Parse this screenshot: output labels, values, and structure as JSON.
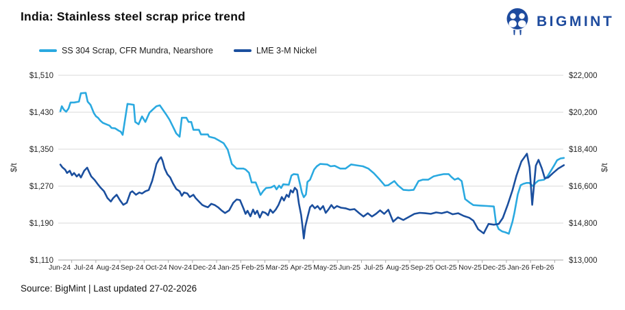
{
  "header": {
    "title": "India: Stainless steel scrap price trend",
    "logo_text": "BIGMINT",
    "logo_color": "#1E4B9E"
  },
  "footer": {
    "source": "Source: BigMint | Last updated 27-02-2026"
  },
  "chart_data": {
    "type": "line",
    "title": "India: Stainless steel scrap price trend",
    "grid": "horizontal",
    "legend_position": "top-left",
    "x_axis": {
      "labels": [
        "Jun-24",
        "Jul-24",
        "Aug-24",
        "Sep-24",
        "Oct-24",
        "Nov-24",
        "Dec-24",
        "Jan-25",
        "Feb-25",
        "Mar-25",
        "Apr-25",
        "May-25",
        "Jun-25",
        "Jul-25",
        "Aug-25",
        "Sep-25",
        "Oct-25",
        "Nov-25",
        "Dec-25",
        "Jan-26",
        "Feb-26"
      ]
    },
    "left_axis": {
      "label": "$/t",
      "min": 1110,
      "max": 1510,
      "ticks": [
        "$1,510",
        "$1,430",
        "$1,350",
        "$1,270",
        "$1,190",
        "$1,110"
      ],
      "tick_values": [
        1510,
        1430,
        1350,
        1270,
        1190,
        1110
      ]
    },
    "right_axis": {
      "label": "$/t",
      "min": 13000,
      "max": 22000,
      "ticks": [
        "$22,000",
        "$20,200",
        "$18,400",
        "$16,600",
        "$14,800",
        "$13,000"
      ],
      "tick_values": [
        22000,
        20200,
        18400,
        16600,
        14800,
        13000
      ]
    },
    "series": [
      {
        "name": "SS 304 Scrap, CFR Mundra, Nearshore",
        "axis": "left",
        "color": "#2AA9E0",
        "points": [
          [
            0.03,
            1432
          ],
          [
            0.09,
            1443
          ],
          [
            0.17,
            1436
          ],
          [
            0.27,
            1431
          ],
          [
            0.37,
            1438
          ],
          [
            0.45,
            1451
          ],
          [
            0.6,
            1451
          ],
          [
            0.8,
            1453
          ],
          [
            0.88,
            1471
          ],
          [
            1.08,
            1472
          ],
          [
            1.16,
            1453
          ],
          [
            1.28,
            1446
          ],
          [
            1.42,
            1428
          ],
          [
            1.51,
            1421
          ],
          [
            1.59,
            1418
          ],
          [
            1.7,
            1411
          ],
          [
            1.79,
            1407
          ],
          [
            1.93,
            1404
          ],
          [
            2.07,
            1401
          ],
          [
            2.15,
            1396
          ],
          [
            2.3,
            1395
          ],
          [
            2.45,
            1390
          ],
          [
            2.53,
            1388
          ],
          [
            2.61,
            1381
          ],
          [
            2.69,
            1408
          ],
          [
            2.81,
            1448
          ],
          [
            2.95,
            1447
          ],
          [
            3.07,
            1446
          ],
          [
            3.13,
            1409
          ],
          [
            3.27,
            1404
          ],
          [
            3.41,
            1421
          ],
          [
            3.55,
            1409
          ],
          [
            3.72,
            1429
          ],
          [
            3.86,
            1436
          ],
          [
            4.01,
            1443
          ],
          [
            4.15,
            1445
          ],
          [
            4.4,
            1426
          ],
          [
            4.55,
            1414
          ],
          [
            4.69,
            1399
          ],
          [
            4.83,
            1384
          ],
          [
            4.97,
            1377
          ],
          [
            5.06,
            1418
          ],
          [
            5.25,
            1418
          ],
          [
            5.34,
            1409
          ],
          [
            5.45,
            1409
          ],
          [
            5.54,
            1392
          ],
          [
            5.77,
            1392
          ],
          [
            5.85,
            1382
          ],
          [
            6.14,
            1382
          ],
          [
            6.19,
            1377
          ],
          [
            6.42,
            1374
          ],
          [
            6.62,
            1368
          ],
          [
            6.79,
            1363
          ],
          [
            6.96,
            1349
          ],
          [
            7.13,
            1318
          ],
          [
            7.33,
            1308
          ],
          [
            7.61,
            1308
          ],
          [
            7.7,
            1306
          ],
          [
            7.84,
            1299
          ],
          [
            7.95,
            1278
          ],
          [
            8.12,
            1278
          ],
          [
            8.21,
            1266
          ],
          [
            8.32,
            1251
          ],
          [
            8.44,
            1260
          ],
          [
            8.55,
            1266
          ],
          [
            8.75,
            1267
          ],
          [
            8.89,
            1271
          ],
          [
            8.98,
            1263
          ],
          [
            9.09,
            1271
          ],
          [
            9.17,
            1266
          ],
          [
            9.26,
            1274
          ],
          [
            9.49,
            1273
          ],
          [
            9.6,
            1293
          ],
          [
            9.69,
            1296
          ],
          [
            9.86,
            1295
          ],
          [
            9.97,
            1271
          ],
          [
            10.03,
            1256
          ],
          [
            10.11,
            1246
          ],
          [
            10.2,
            1252
          ],
          [
            10.26,
            1279
          ],
          [
            10.37,
            1284
          ],
          [
            10.54,
            1306
          ],
          [
            10.65,
            1313
          ],
          [
            10.79,
            1318
          ],
          [
            11.08,
            1317
          ],
          [
            11.22,
            1313
          ],
          [
            11.39,
            1314
          ],
          [
            11.62,
            1308
          ],
          [
            11.84,
            1308
          ],
          [
            12.07,
            1317
          ],
          [
            12.3,
            1315
          ],
          [
            12.56,
            1313
          ],
          [
            12.78,
            1308
          ],
          [
            13.01,
            1298
          ],
          [
            13.24,
            1285
          ],
          [
            13.47,
            1271
          ],
          [
            13.61,
            1272
          ],
          [
            13.86,
            1281
          ],
          [
            14.0,
            1272
          ],
          [
            14.23,
            1262
          ],
          [
            14.46,
            1261
          ],
          [
            14.66,
            1262
          ],
          [
            14.86,
            1281
          ],
          [
            15.03,
            1284
          ],
          [
            15.26,
            1284
          ],
          [
            15.48,
            1291
          ],
          [
            15.71,
            1294
          ],
          [
            15.91,
            1296
          ],
          [
            16.11,
            1296
          ],
          [
            16.22,
            1290
          ],
          [
            16.36,
            1284
          ],
          [
            16.5,
            1287
          ],
          [
            16.65,
            1281
          ],
          [
            16.79,
            1242
          ],
          [
            16.99,
            1234
          ],
          [
            17.13,
            1229
          ],
          [
            17.41,
            1228
          ],
          [
            17.7,
            1227
          ],
          [
            17.98,
            1226
          ],
          [
            18.07,
            1190
          ],
          [
            18.18,
            1177
          ],
          [
            18.32,
            1172
          ],
          [
            18.46,
            1170
          ],
          [
            18.6,
            1167
          ],
          [
            18.75,
            1193
          ],
          [
            18.83,
            1212
          ],
          [
            18.97,
            1252
          ],
          [
            19.09,
            1272
          ],
          [
            19.2,
            1275
          ],
          [
            19.34,
            1277
          ],
          [
            19.45,
            1277
          ],
          [
            19.6,
            1270
          ],
          [
            19.71,
            1277
          ],
          [
            19.83,
            1282
          ],
          [
            20.06,
            1284
          ],
          [
            20.2,
            1291
          ],
          [
            20.34,
            1303
          ],
          [
            20.48,
            1315
          ],
          [
            20.6,
            1326
          ],
          [
            20.74,
            1330
          ],
          [
            20.88,
            1331
          ]
        ]
      },
      {
        "name": "LME 3-M Nickel",
        "axis": "right",
        "color": "#1B4F9E",
        "points": [
          [
            0.03,
            17650
          ],
          [
            0.11,
            17520
          ],
          [
            0.23,
            17400
          ],
          [
            0.31,
            17240
          ],
          [
            0.42,
            17350
          ],
          [
            0.51,
            17130
          ],
          [
            0.6,
            17240
          ],
          [
            0.71,
            17070
          ],
          [
            0.8,
            17180
          ],
          [
            0.88,
            17020
          ],
          [
            1.02,
            17350
          ],
          [
            1.14,
            17500
          ],
          [
            1.22,
            17290
          ],
          [
            1.31,
            17070
          ],
          [
            1.45,
            16900
          ],
          [
            1.59,
            16680
          ],
          [
            1.7,
            16520
          ],
          [
            1.84,
            16350
          ],
          [
            1.98,
            16020
          ],
          [
            2.12,
            15850
          ],
          [
            2.22,
            16020
          ],
          [
            2.36,
            16180
          ],
          [
            2.5,
            15910
          ],
          [
            2.64,
            15690
          ],
          [
            2.78,
            15790
          ],
          [
            2.93,
            16290
          ],
          [
            3.01,
            16350
          ],
          [
            3.16,
            16180
          ],
          [
            3.3,
            16290
          ],
          [
            3.41,
            16240
          ],
          [
            3.55,
            16350
          ],
          [
            3.69,
            16410
          ],
          [
            3.83,
            16850
          ],
          [
            3.92,
            17240
          ],
          [
            4.01,
            17680
          ],
          [
            4.12,
            17910
          ],
          [
            4.2,
            18010
          ],
          [
            4.26,
            17850
          ],
          [
            4.35,
            17460
          ],
          [
            4.46,
            17180
          ],
          [
            4.58,
            17020
          ],
          [
            4.69,
            16740
          ],
          [
            4.83,
            16460
          ],
          [
            4.97,
            16350
          ],
          [
            5.06,
            16130
          ],
          [
            5.15,
            16290
          ],
          [
            5.29,
            16240
          ],
          [
            5.39,
            16070
          ],
          [
            5.54,
            16180
          ],
          [
            5.63,
            16020
          ],
          [
            5.77,
            15850
          ],
          [
            5.91,
            15680
          ],
          [
            6.0,
            15630
          ],
          [
            6.14,
            15570
          ],
          [
            6.28,
            15740
          ],
          [
            6.42,
            15680
          ],
          [
            6.56,
            15570
          ],
          [
            6.71,
            15410
          ],
          [
            6.85,
            15290
          ],
          [
            7.02,
            15420
          ],
          [
            7.19,
            15790
          ],
          [
            7.33,
            15950
          ],
          [
            7.47,
            15920
          ],
          [
            7.61,
            15520
          ],
          [
            7.7,
            15250
          ],
          [
            7.78,
            15400
          ],
          [
            7.9,
            15130
          ],
          [
            8.01,
            15460
          ],
          [
            8.09,
            15240
          ],
          [
            8.18,
            15400
          ],
          [
            8.29,
            15070
          ],
          [
            8.4,
            15350
          ],
          [
            8.52,
            15300
          ],
          [
            8.63,
            15180
          ],
          [
            8.72,
            15460
          ],
          [
            8.83,
            15300
          ],
          [
            8.95,
            15460
          ],
          [
            9.06,
            15680
          ],
          [
            9.2,
            16070
          ],
          [
            9.29,
            15900
          ],
          [
            9.4,
            16180
          ],
          [
            9.49,
            16070
          ],
          [
            9.57,
            16400
          ],
          [
            9.66,
            16290
          ],
          [
            9.74,
            16520
          ],
          [
            9.83,
            16400
          ],
          [
            9.91,
            15740
          ],
          [
            10.0,
            15200
          ],
          [
            10.06,
            14620
          ],
          [
            10.11,
            14050
          ],
          [
            10.17,
            14620
          ],
          [
            10.26,
            15070
          ],
          [
            10.37,
            15570
          ],
          [
            10.46,
            15680
          ],
          [
            10.57,
            15520
          ],
          [
            10.68,
            15630
          ],
          [
            10.79,
            15460
          ],
          [
            10.91,
            15630
          ],
          [
            11.02,
            15300
          ],
          [
            11.13,
            15460
          ],
          [
            11.25,
            15680
          ],
          [
            11.36,
            15520
          ],
          [
            11.48,
            15630
          ],
          [
            11.65,
            15550
          ],
          [
            11.84,
            15520
          ],
          [
            12.02,
            15450
          ],
          [
            12.21,
            15480
          ],
          [
            12.41,
            15280
          ],
          [
            12.58,
            15120
          ],
          [
            12.76,
            15280
          ],
          [
            12.93,
            15120
          ],
          [
            13.1,
            15250
          ],
          [
            13.27,
            15420
          ],
          [
            13.44,
            15250
          ],
          [
            13.61,
            15450
          ],
          [
            13.81,
            14870
          ],
          [
            14.01,
            15080
          ],
          [
            14.23,
            14950
          ],
          [
            14.46,
            15100
          ],
          [
            14.69,
            15250
          ],
          [
            14.91,
            15300
          ],
          [
            15.14,
            15280
          ],
          [
            15.37,
            15250
          ],
          [
            15.59,
            15320
          ],
          [
            15.82,
            15280
          ],
          [
            16.05,
            15350
          ],
          [
            16.27,
            15230
          ],
          [
            16.5,
            15280
          ],
          [
            16.73,
            15150
          ],
          [
            16.96,
            15060
          ],
          [
            17.13,
            14920
          ],
          [
            17.33,
            14500
          ],
          [
            17.56,
            14300
          ],
          [
            17.76,
            14760
          ],
          [
            17.98,
            14720
          ],
          [
            18.18,
            14760
          ],
          [
            18.35,
            15050
          ],
          [
            18.55,
            15680
          ],
          [
            18.75,
            16400
          ],
          [
            18.92,
            17120
          ],
          [
            19.12,
            17800
          ],
          [
            19.35,
            18180
          ],
          [
            19.46,
            17520
          ],
          [
            19.57,
            15690
          ],
          [
            19.72,
            17600
          ],
          [
            19.83,
            17880
          ],
          [
            19.97,
            17460
          ],
          [
            20.09,
            16980
          ],
          [
            20.23,
            17020
          ],
          [
            20.43,
            17240
          ],
          [
            20.65,
            17460
          ],
          [
            20.88,
            17620
          ]
        ]
      }
    ]
  }
}
